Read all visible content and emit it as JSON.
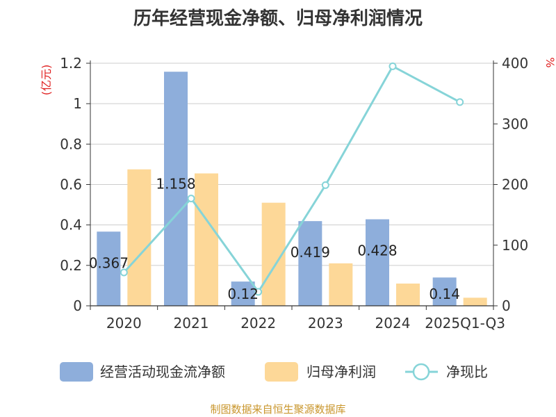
{
  "title": "历年经营现金净额、归母净利润情况",
  "source": "制图数据来自恒生聚源数据库",
  "chart_data": {
    "type": "bar",
    "categories": [
      "2020",
      "2021",
      "2022",
      "2023",
      "2024",
      "2025Q1-Q3"
    ],
    "series": [
      {
        "name": "经营活动现金流净额",
        "type": "bar",
        "axis": "left",
        "color": "#8eaedb",
        "values": [
          0.367,
          1.158,
          0.12,
          0.419,
          0.428,
          0.14
        ],
        "labels": [
          "0.367",
          "1.158",
          "0.12",
          "0.419",
          "0.428",
          "0.14"
        ]
      },
      {
        "name": "归母净利润",
        "type": "bar",
        "axis": "left",
        "color": "#fdd898",
        "values": [
          0.675,
          0.655,
          0.51,
          0.21,
          0.11,
          0.04
        ]
      },
      {
        "name": "净现比",
        "type": "line",
        "axis": "right",
        "color": "#86d4d8",
        "values": [
          55,
          177,
          23,
          199,
          395,
          336
        ]
      }
    ],
    "left_axis": {
      "unit": "(亿元)",
      "min": 0,
      "max": 1.2,
      "ticks": [
        "0",
        "0.2",
        "0.4",
        "0.6",
        "0.8",
        "1",
        "1.2"
      ]
    },
    "right_axis": {
      "unit": "%",
      "min": 0,
      "max": 400,
      "ticks": [
        "0",
        "100",
        "200",
        "300",
        "400"
      ]
    },
    "grid": true,
    "legend_position": "bottom"
  }
}
